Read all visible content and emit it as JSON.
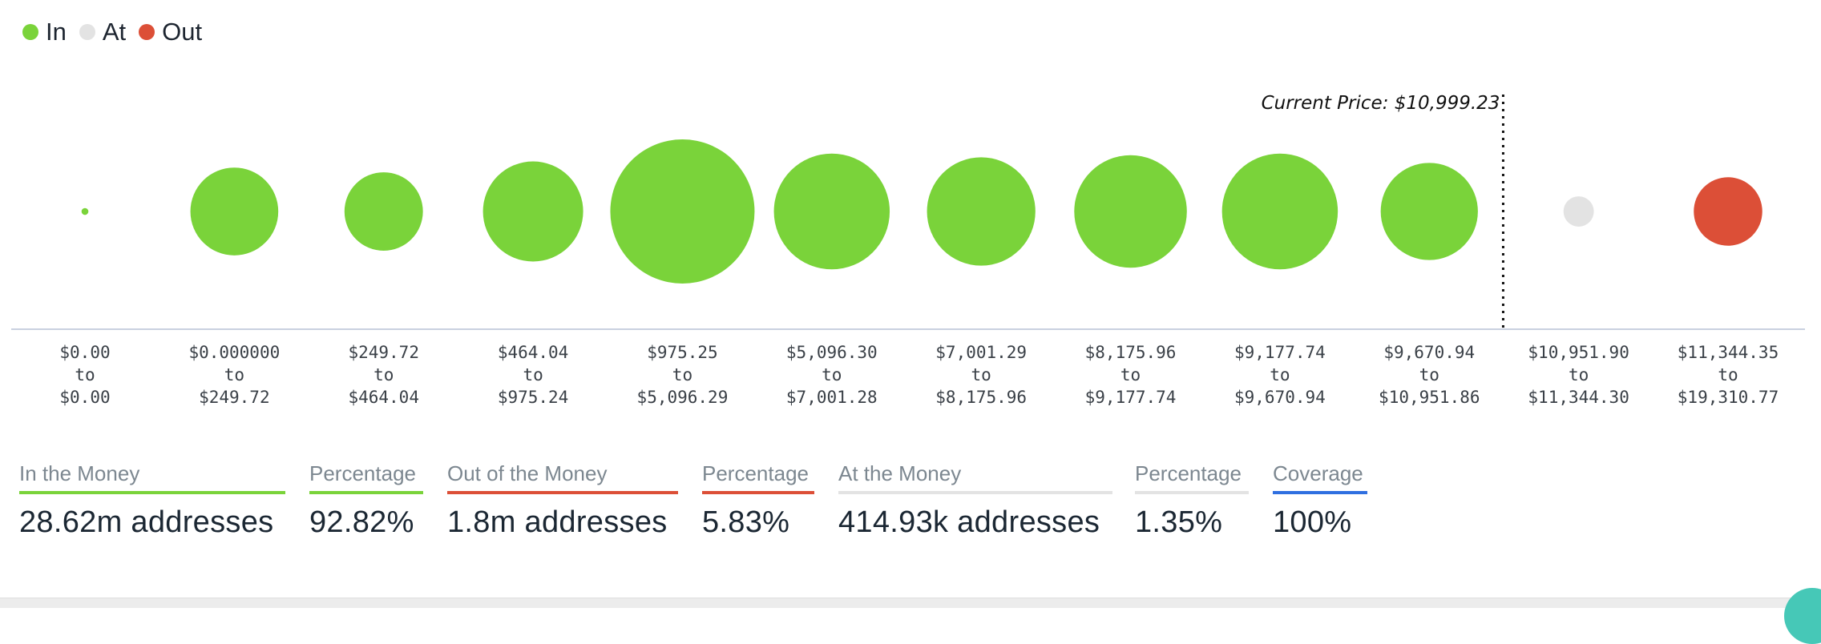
{
  "legend": [
    {
      "label": "In",
      "color": "#7ad33a"
    },
    {
      "label": "At",
      "color": "#e3e3e3"
    },
    {
      "label": "Out",
      "color": "#dc4f37"
    }
  ],
  "chart_data": {
    "type": "bubble",
    "title": "",
    "size_unit": "relative addresses",
    "current_price_label": "Current Price: $10,999.23",
    "current_price": 10999.23,
    "bubbles": [
      {
        "range_from": "$0.00",
        "range_to": "$0.00",
        "status": "In",
        "size": 6.9
      },
      {
        "range_from": "$0.000000",
        "range_to": "$249.72",
        "status": "In",
        "size": 87.7
      },
      {
        "range_from": "$249.72",
        "range_to": "$464.04",
        "status": "In",
        "size": 78.3
      },
      {
        "range_from": "$464.04",
        "range_to": "$975.24",
        "status": "In",
        "size": 100
      },
      {
        "range_from": "$975.25",
        "range_to": "$5,096.29",
        "status": "In",
        "size": 144
      },
      {
        "range_from": "$5,096.30",
        "range_to": "$7,001.28",
        "status": "In",
        "size": 115.6
      },
      {
        "range_from": "$7,001.29",
        "range_to": "$8,175.96",
        "status": "In",
        "size": 108.2
      },
      {
        "range_from": "$8,175.96",
        "range_to": "$9,177.74",
        "status": "In",
        "size": 112.4
      },
      {
        "range_from": "$9,177.74",
        "range_to": "$9,670.94",
        "status": "In",
        "size": 115.6
      },
      {
        "range_from": "$9,670.94",
        "range_to": "$10,951.86",
        "status": "In",
        "size": 97.0
      },
      {
        "range_from": "$10,951.90",
        "range_to": "$11,344.30",
        "status": "At",
        "size": 30.3
      },
      {
        "range_from": "$11,344.35",
        "range_to": "$19,310.77",
        "status": "Out",
        "size": 68.4
      }
    ],
    "connector": "to",
    "colors": {
      "In": "#7ad33a",
      "At": "#e3e3e3",
      "Out": "#dc4f37"
    }
  },
  "stats": [
    {
      "label": "In the Money",
      "value": "28.62m addresses",
      "color": "#7ad33a"
    },
    {
      "label": "Percentage",
      "value": "92.82%",
      "color": "#7ad33a"
    },
    {
      "label": "Out of the Money",
      "value": "1.8m addresses",
      "color": "#dc4f37"
    },
    {
      "label": "Percentage",
      "value": "5.83%",
      "color": "#dc4f37"
    },
    {
      "label": "At the Money",
      "value": "414.93k addresses",
      "color": "#e3e3e3"
    },
    {
      "label": "Percentage",
      "value": "1.35%",
      "color": "#e3e3e3"
    },
    {
      "label": "Coverage",
      "value": "100%",
      "color": "#2f6fe0"
    }
  ]
}
